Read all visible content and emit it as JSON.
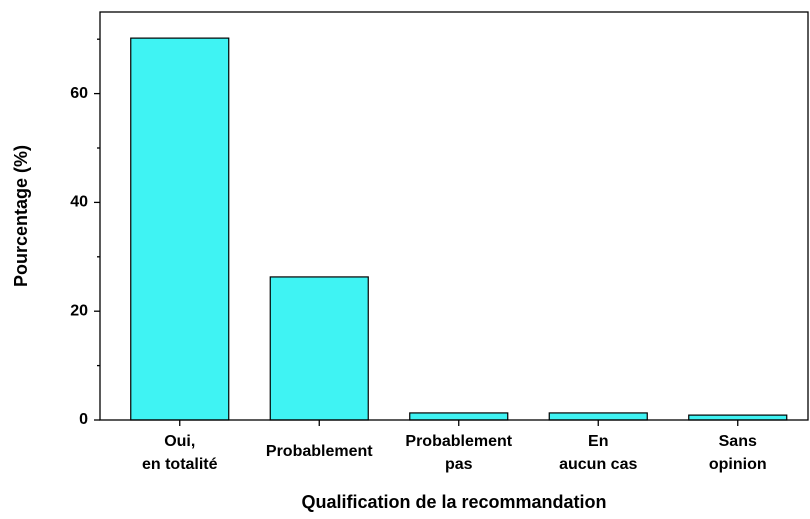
{
  "chart_data": {
    "type": "bar",
    "x_label": "Qualification de la recommandation",
    "y_label": "Pourcentage (%)",
    "categories": [
      [
        "Oui,",
        "en totalité"
      ],
      [
        "Probablement"
      ],
      [
        "Probablement",
        "pas"
      ],
      [
        "En",
        "aucun cas"
      ],
      [
        "Sans",
        "opinion"
      ]
    ],
    "values": [
      70.2,
      26.3,
      1.3,
      1.3,
      0.9
    ],
    "color": "#3ff3f3",
    "ylim": [
      0,
      75
    ],
    "yticks": [
      0,
      20,
      40,
      60
    ],
    "yminor": [
      10,
      30,
      50,
      70
    ],
    "grid": false
  }
}
